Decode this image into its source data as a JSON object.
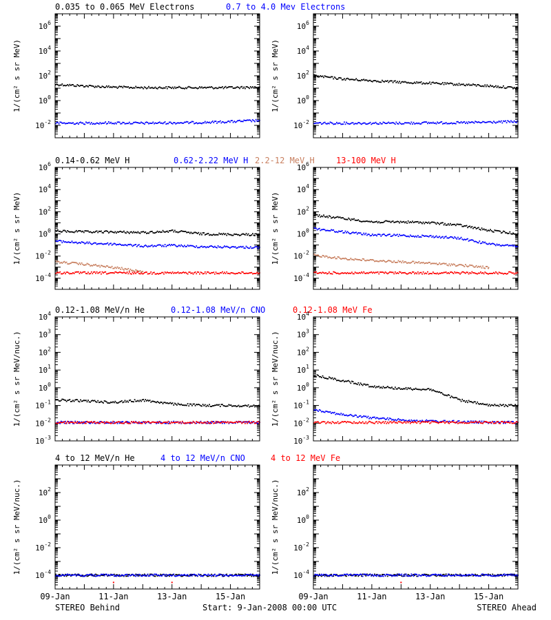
{
  "colors": {
    "black": "#000000",
    "blue": "#0000ff",
    "brown": "#c87f5f",
    "red": "#ff0000"
  },
  "row_titles": [
    [
      {
        "text": "0.035 to 0.065 MeV Electrons",
        "color": "#000000"
      },
      {
        "text": "0.7 to 4.0 Mev Electrons",
        "color": "#0000ff"
      }
    ],
    [
      {
        "text": "0.14-0.62 MeV H",
        "color": "#000000"
      },
      {
        "text": "0.62-2.22 MeV H",
        "color": "#0000ff"
      },
      {
        "text": "2.2-12 MeV H",
        "color": "#c87f5f"
      },
      {
        "text": "13-100 MeV H",
        "color": "#ff0000"
      }
    ],
    [
      {
        "text": "0.12-1.08 MeV/n He",
        "color": "#000000"
      },
      {
        "text": "0.12-1.08 MeV/n CNO",
        "color": "#0000ff"
      },
      {
        "text": "0.12-1.08 MeV Fe",
        "color": "#ff0000"
      }
    ],
    [
      {
        "text": "4 to 12 MeV/n He",
        "color": "#000000"
      },
      {
        "text": "4 to 12 MeV/n CNO",
        "color": "#0000ff"
      },
      {
        "text": "4 to 12 MeV Fe",
        "color": "#ff0000"
      }
    ]
  ],
  "footer": {
    "left": "STEREO Behind",
    "center": "Start:  9-Jan-2008 00:00 UTC",
    "right": "STEREO Ahead"
  },
  "x_ticks": [
    "09-Jan",
    "11-Jan",
    "13-Jan",
    "15-Jan"
  ],
  "chart_data": [
    {
      "type": "scatter",
      "panel": "electrons-behind",
      "ylabel": "1/(cm² s sr MeV)",
      "yscale": "log",
      "ylim": [
        0.001,
        10000000
      ],
      "ytick_exponents": [
        -2,
        0,
        2,
        4,
        6
      ],
      "xlim": [
        "2008-01-09",
        "2008-01-16"
      ],
      "xticks": [
        "09-Jan",
        "11-Jan",
        "13-Jan",
        "15-Jan"
      ],
      "series": [
        {
          "name": "0.035 to 0.065 MeV Electrons",
          "color": "#000000",
          "x": [
            "2008-01-09",
            "2008-01-10",
            "2008-01-11",
            "2008-01-12",
            "2008-01-13",
            "2008-01-14",
            "2008-01-15",
            "2008-01-16"
          ],
          "y": [
            20,
            15,
            12,
            11,
            11,
            11,
            11,
            12
          ]
        },
        {
          "name": "0.7 to 4.0 Mev Electrons",
          "color": "#0000ff",
          "x": [
            "2008-01-09",
            "2008-01-10",
            "2008-01-11",
            "2008-01-12",
            "2008-01-13",
            "2008-01-14",
            "2008-01-15",
            "2008-01-16"
          ],
          "y": [
            0.015,
            0.015,
            0.016,
            0.015,
            0.016,
            0.017,
            0.02,
            0.025
          ]
        }
      ]
    },
    {
      "type": "scatter",
      "panel": "electrons-ahead",
      "ylabel": "1/(cm² s sr MeV)",
      "yscale": "log",
      "ylim": [
        0.001,
        10000000
      ],
      "ytick_exponents": [
        -2,
        0,
        2,
        4,
        6
      ],
      "xlim": [
        "2008-01-09",
        "2008-01-16"
      ],
      "xticks": [
        "09-Jan",
        "11-Jan",
        "13-Jan",
        "15-Jan"
      ],
      "series": [
        {
          "name": "0.035 to 0.065 MeV Electrons",
          "color": "#000000",
          "x": [
            "2008-01-09",
            "2008-01-10",
            "2008-01-11",
            "2008-01-12",
            "2008-01-13",
            "2008-01-14",
            "2008-01-15",
            "2008-01-16"
          ],
          "y": [
            100,
            55,
            40,
            30,
            25,
            20,
            15,
            10
          ]
        },
        {
          "name": "0.7 to 4.0 Mev Electrons",
          "color": "#0000ff",
          "x": [
            "2008-01-09",
            "2008-01-10",
            "2008-01-11",
            "2008-01-12",
            "2008-01-13",
            "2008-01-14",
            "2008-01-15",
            "2008-01-16"
          ],
          "y": [
            0.015,
            0.015,
            0.015,
            0.015,
            0.016,
            0.016,
            0.018,
            0.02
          ]
        }
      ]
    },
    {
      "type": "scatter",
      "panel": "protons-behind",
      "ylabel": "1/(cm² s sr MeV)",
      "yscale": "log",
      "ylim": [
        1e-05,
        1000000
      ],
      "ytick_exponents": [
        -4,
        -2,
        0,
        2,
        4,
        6
      ],
      "xlim": [
        "2008-01-09",
        "2008-01-16"
      ],
      "xticks": [
        "09-Jan",
        "11-Jan",
        "13-Jan",
        "15-Jan"
      ],
      "series": [
        {
          "name": "0.14-0.62 MeV H",
          "color": "#000000",
          "x": [
            "2008-01-09",
            "2008-01-10",
            "2008-01-11",
            "2008-01-12",
            "2008-01-13",
            "2008-01-14",
            "2008-01-15",
            "2008-01-16"
          ],
          "y": [
            1.8,
            1.5,
            1.5,
            1.3,
            1.8,
            1.0,
            0.9,
            0.85
          ]
        },
        {
          "name": "0.62-2.22 MeV H",
          "color": "#0000ff",
          "x": [
            "2008-01-09",
            "2008-01-10",
            "2008-01-11",
            "2008-01-12",
            "2008-01-13",
            "2008-01-14",
            "2008-01-15",
            "2008-01-16"
          ],
          "y": [
            0.22,
            0.15,
            0.12,
            0.08,
            0.09,
            0.07,
            0.065,
            0.06
          ]
        },
        {
          "name": "2.2-12 MeV H",
          "color": "#c87f5f",
          "x": [
            "2008-01-09",
            "2008-01-10",
            "2008-01-11",
            "2008-01-12"
          ],
          "y": [
            0.003,
            0.0018,
            0.0009,
            0.0004
          ]
        },
        {
          "name": "13-100 MeV H",
          "color": "#ff0000",
          "x": [
            "2008-01-09",
            "2008-01-10",
            "2008-01-11",
            "2008-01-12",
            "2008-01-13",
            "2008-01-14",
            "2008-01-15",
            "2008-01-16"
          ],
          "y": [
            0.0003,
            0.0003,
            0.0003,
            0.0003,
            0.0003,
            0.0003,
            0.0003,
            0.0003
          ]
        }
      ]
    },
    {
      "type": "scatter",
      "panel": "protons-ahead",
      "ylabel": "1/(cm² s sr MeV)",
      "yscale": "log",
      "ylim": [
        1e-05,
        1000000
      ],
      "ytick_exponents": [
        -4,
        -2,
        0,
        2,
        4,
        6
      ],
      "xlim": [
        "2008-01-09",
        "2008-01-16"
      ],
      "xticks": [
        "09-Jan",
        "11-Jan",
        "13-Jan",
        "15-Jan"
      ],
      "series": [
        {
          "name": "0.14-0.62 MeV H",
          "color": "#000000",
          "x": [
            "2008-01-09",
            "2008-01-10",
            "2008-01-11",
            "2008-01-12",
            "2008-01-13",
            "2008-01-14",
            "2008-01-15",
            "2008-01-16"
          ],
          "y": [
            50,
            25,
            12,
            12,
            10,
            6,
            2,
            1
          ]
        },
        {
          "name": "0.62-2.22 MeV H",
          "color": "#0000ff",
          "x": [
            "2008-01-09",
            "2008-01-10",
            "2008-01-11",
            "2008-01-12",
            "2008-01-13",
            "2008-01-14",
            "2008-01-15",
            "2008-01-16"
          ],
          "y": [
            3,
            1.5,
            0.8,
            0.7,
            0.6,
            0.4,
            0.12,
            0.07
          ]
        },
        {
          "name": "2.2-12 MeV H",
          "color": "#c87f5f",
          "x": [
            "2008-01-09",
            "2008-01-10",
            "2008-01-11",
            "2008-01-12",
            "2008-01-13",
            "2008-01-14",
            "2008-01-15"
          ],
          "y": [
            0.012,
            0.006,
            0.004,
            0.003,
            0.0022,
            0.0015,
            0.0009
          ]
        },
        {
          "name": "13-100 MeV H",
          "color": "#ff0000",
          "x": [
            "2008-01-09",
            "2008-01-10",
            "2008-01-11",
            "2008-01-12",
            "2008-01-13",
            "2008-01-14",
            "2008-01-15",
            "2008-01-16"
          ],
          "y": [
            0.0003,
            0.0003,
            0.0003,
            0.0003,
            0.0003,
            0.0003,
            0.0003,
            0.0003
          ]
        }
      ]
    },
    {
      "type": "scatter",
      "panel": "ions-low-behind",
      "ylabel": "1/(cm² s sr MeV/nuc.)",
      "yscale": "log",
      "ylim": [
        0.001,
        10000
      ],
      "ytick_exponents": [
        -3,
        -2,
        -1,
        0,
        1,
        2,
        3,
        4
      ],
      "xlim": [
        "2008-01-09",
        "2008-01-16"
      ],
      "xticks": [
        "09-Jan",
        "11-Jan",
        "13-Jan",
        "15-Jan"
      ],
      "series": [
        {
          "name": "0.12-1.08 MeV/n He",
          "color": "#000000",
          "x": [
            "2008-01-09",
            "2008-01-10",
            "2008-01-11",
            "2008-01-12",
            "2008-01-13",
            "2008-01-14",
            "2008-01-15",
            "2008-01-16"
          ],
          "y": [
            0.2,
            0.18,
            0.15,
            0.2,
            0.12,
            0.1,
            0.1,
            0.09
          ]
        },
        {
          "name": "0.12-1.08 MeV/n CNO",
          "color": "#0000ff",
          "x": [
            "2008-01-09",
            "2008-01-10",
            "2008-01-11",
            "2008-01-12",
            "2008-01-13",
            "2008-01-14",
            "2008-01-15",
            "2008-01-16"
          ],
          "y": [
            0.011,
            0.011,
            0.011,
            0.011,
            0.011,
            0.011,
            0.011,
            0.011
          ]
        },
        {
          "name": "0.12-1.08 MeV Fe",
          "color": "#ff0000",
          "x": [
            "2008-01-09",
            "2008-01-10",
            "2008-01-11",
            "2008-01-12",
            "2008-01-13",
            "2008-01-14",
            "2008-01-15",
            "2008-01-16"
          ],
          "y": [
            0.011,
            0.011,
            0.011,
            0.011,
            0.011,
            0.011,
            0.011,
            0.011
          ]
        }
      ]
    },
    {
      "type": "scatter",
      "panel": "ions-low-ahead",
      "ylabel": "1/(cm² s sr MeV/nuc.)",
      "yscale": "log",
      "ylim": [
        0.001,
        10000
      ],
      "ytick_exponents": [
        -3,
        -2,
        -1,
        0,
        1,
        2,
        3,
        4
      ],
      "xlim": [
        "2008-01-09",
        "2008-01-16"
      ],
      "xticks": [
        "09-Jan",
        "11-Jan",
        "13-Jan",
        "15-Jan"
      ],
      "series": [
        {
          "name": "0.12-1.08 MeV/n He",
          "color": "#000000",
          "x": [
            "2008-01-09",
            "2008-01-10",
            "2008-01-11",
            "2008-01-12",
            "2008-01-13",
            "2008-01-14",
            "2008-01-15",
            "2008-01-16"
          ],
          "y": [
            5,
            2.5,
            1.2,
            0.9,
            0.8,
            0.2,
            0.1,
            0.1
          ]
        },
        {
          "name": "0.12-1.08 MeV/n CNO",
          "color": "#0000ff",
          "x": [
            "2008-01-09",
            "2008-01-10",
            "2008-01-11",
            "2008-01-12",
            "2008-01-13",
            "2008-01-14",
            "2008-01-15",
            "2008-01-16"
          ],
          "y": [
            0.06,
            0.03,
            0.02,
            0.015,
            0.013,
            0.012,
            0.011,
            0.011
          ]
        },
        {
          "name": "0.12-1.08 MeV Fe",
          "color": "#ff0000",
          "x": [
            "2008-01-09",
            "2008-01-10",
            "2008-01-11",
            "2008-01-12",
            "2008-01-13",
            "2008-01-14",
            "2008-01-15",
            "2008-01-16"
          ],
          "y": [
            0.011,
            0.011,
            0.011,
            0.011,
            0.011,
            0.011,
            0.011,
            0.011
          ]
        }
      ]
    },
    {
      "type": "scatter",
      "panel": "ions-high-behind",
      "ylabel": "1/(cm² s sr MeV/nuc.)",
      "yscale": "log",
      "ylim": [
        1e-05,
        10000
      ],
      "ytick_exponents": [
        -4,
        -2,
        0,
        2
      ],
      "xlim": [
        "2008-01-09",
        "2008-01-16"
      ],
      "xticks": [
        "09-Jan",
        "11-Jan",
        "13-Jan",
        "15-Jan"
      ],
      "series": [
        {
          "name": "4 to 12 MeV/n He",
          "color": "#000000",
          "x": [
            "2008-01-09",
            "2008-01-10",
            "2008-01-11",
            "2008-01-12",
            "2008-01-13",
            "2008-01-14",
            "2008-01-15",
            "2008-01-16"
          ],
          "y": [
            0.0001,
            0.0001,
            0.0001,
            0.0001,
            0.0001,
            0.0001,
            0.0001,
            0.0001
          ]
        },
        {
          "name": "4 to 12 MeV/n CNO",
          "color": "#0000ff",
          "x": [
            "2008-01-09",
            "2008-01-10",
            "2008-01-11",
            "2008-01-12",
            "2008-01-13",
            "2008-01-14",
            "2008-01-15",
            "2008-01-16"
          ],
          "y": [
            0.0001,
            0.0001,
            0.0001,
            0.0001,
            0.0001,
            0.0001,
            0.0001,
            0.0001
          ]
        },
        {
          "name": "4 to 12 MeV Fe",
          "color": "#ff0000",
          "x": [
            "2008-01-11",
            "2008-01-13"
          ],
          "y": [
            3e-05,
            3e-05
          ]
        }
      ]
    },
    {
      "type": "scatter",
      "panel": "ions-high-ahead",
      "ylabel": "1/(cm² s sr MeV/nuc.)",
      "yscale": "log",
      "ylim": [
        1e-05,
        10000
      ],
      "ytick_exponents": [
        -4,
        -2,
        0,
        2
      ],
      "xlim": [
        "2008-01-09",
        "2008-01-16"
      ],
      "xticks": [
        "09-Jan",
        "11-Jan",
        "13-Jan",
        "15-Jan"
      ],
      "series": [
        {
          "name": "4 to 12 MeV/n He",
          "color": "#000000",
          "x": [
            "2008-01-09",
            "2008-01-10",
            "2008-01-11",
            "2008-01-12",
            "2008-01-13",
            "2008-01-14",
            "2008-01-15",
            "2008-01-16"
          ],
          "y": [
            0.0001,
            0.0001,
            0.0001,
            0.0001,
            0.0001,
            0.0001,
            0.0001,
            0.0001
          ]
        },
        {
          "name": "4 to 12 MeV/n CNO",
          "color": "#0000ff",
          "x": [
            "2008-01-09",
            "2008-01-10",
            "2008-01-11",
            "2008-01-12",
            "2008-01-13",
            "2008-01-14",
            "2008-01-15",
            "2008-01-16"
          ],
          "y": [
            0.0001,
            0.0001,
            0.0001,
            0.0001,
            0.0001,
            0.0001,
            0.0001,
            0.0001
          ]
        },
        {
          "name": "4 to 12 MeV Fe",
          "color": "#ff0000",
          "x": [
            "2008-01-12"
          ],
          "y": [
            3e-05
          ]
        }
      ]
    }
  ]
}
